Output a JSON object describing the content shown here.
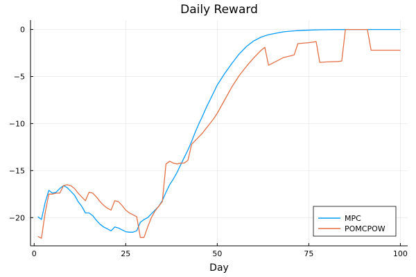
{
  "chart_data": {
    "type": "line",
    "title": "Daily Reward",
    "xlabel": "Day",
    "ylabel": "",
    "xlim": [
      -1,
      102
    ],
    "ylim": [
      -23,
      1
    ],
    "xticks": [
      0,
      25,
      50,
      75,
      100
    ],
    "yticks": [
      0,
      -5,
      -10,
      -15,
      -20
    ],
    "grid": true,
    "legend_position": "bottom-right",
    "colors": {
      "MPC": "#009af9",
      "POMCPOW": "#e26f46"
    },
    "series": [
      {
        "name": "MPC",
        "color": "#009af9",
        "x": [
          1,
          2,
          3,
          4,
          5,
          6,
          7,
          8,
          9,
          10,
          11,
          12,
          13,
          14,
          15,
          16,
          17,
          18,
          19,
          20,
          21,
          22,
          23,
          24,
          25,
          26,
          27,
          28,
          29,
          30,
          31,
          32,
          33,
          34,
          35,
          36,
          37,
          38,
          39,
          40,
          41,
          42,
          43,
          44,
          45,
          46,
          47,
          48,
          49,
          50,
          52,
          54,
          56,
          58,
          60,
          62,
          64,
          66,
          68,
          70,
          72,
          74,
          76,
          78,
          80,
          82,
          84,
          86,
          88,
          90,
          92,
          94,
          96,
          98,
          100
        ],
        "y": [
          -19.9,
          -20.2,
          -18.4,
          -17.1,
          -17.4,
          -17.3,
          -16.9,
          -16.6,
          -16.8,
          -17.2,
          -17.6,
          -18.3,
          -18.8,
          -19.5,
          -19.5,
          -19.8,
          -20.3,
          -20.7,
          -21.0,
          -21.2,
          -21.4,
          -21.0,
          -21.1,
          -21.3,
          -21.5,
          -21.55,
          -21.55,
          -21.4,
          -20.5,
          -20.2,
          -20.0,
          -19.6,
          -19.2,
          -18.8,
          -18.2,
          -17.3,
          -16.5,
          -15.9,
          -15.2,
          -14.4,
          -13.6,
          -12.8,
          -11.9,
          -10.9,
          -10.0,
          -9.2,
          -8.3,
          -7.5,
          -6.7,
          -5.9,
          -4.7,
          -3.6,
          -2.6,
          -1.8,
          -1.2,
          -0.8,
          -0.55,
          -0.4,
          -0.25,
          -0.18,
          -0.12,
          -0.08,
          -0.05,
          -0.03,
          -0.02,
          -0.01,
          -0.01,
          0,
          0,
          0,
          0,
          0,
          0,
          0,
          0
        ]
      },
      {
        "name": "POMCPOW",
        "color": "#e26f46",
        "x": [
          1,
          2,
          3,
          4,
          5,
          6,
          7,
          8,
          9,
          10,
          11,
          12,
          13,
          14,
          15,
          16,
          17,
          18,
          19,
          20,
          21,
          22,
          23,
          24,
          25,
          26,
          27,
          28,
          29,
          30,
          31,
          32,
          33,
          34,
          35,
          36,
          37,
          38,
          39,
          40,
          41,
          42,
          43,
          44,
          45,
          46,
          47,
          48,
          49,
          50,
          52,
          54,
          56,
          58,
          60,
          62,
          63,
          64,
          66,
          68,
          70,
          71,
          72,
          75,
          77,
          78,
          80,
          83,
          84,
          85,
          88,
          91,
          92,
          95,
          100
        ],
        "y": [
          -22.0,
          -22.2,
          -19.5,
          -17.5,
          -17.5,
          -17.4,
          -17.4,
          -16.6,
          -16.5,
          -16.6,
          -16.9,
          -17.4,
          -17.8,
          -18.2,
          -17.3,
          -17.4,
          -17.8,
          -18.3,
          -18.7,
          -19.0,
          -19.2,
          -18.2,
          -18.3,
          -18.7,
          -19.2,
          -19.5,
          -19.7,
          -19.9,
          -22.1,
          -22.1,
          -21.0,
          -20.0,
          -19.3,
          -18.8,
          -18.3,
          -14.3,
          -14.0,
          -14.2,
          -14.3,
          -14.2,
          -14.2,
          -13.9,
          -12.2,
          -11.8,
          -11.4,
          -11.0,
          -10.5,
          -10.0,
          -9.5,
          -8.9,
          -7.5,
          -6.1,
          -4.9,
          -3.9,
          -3.0,
          -2.2,
          -1.9,
          -3.8,
          -3.4,
          -3.0,
          -2.8,
          -2.7,
          -1.5,
          -1.4,
          -1.3,
          -3.5,
          -3.45,
          -3.4,
          -3.35,
          0,
          0,
          0,
          -2.2,
          -2.2,
          -2.2
        ]
      }
    ]
  }
}
